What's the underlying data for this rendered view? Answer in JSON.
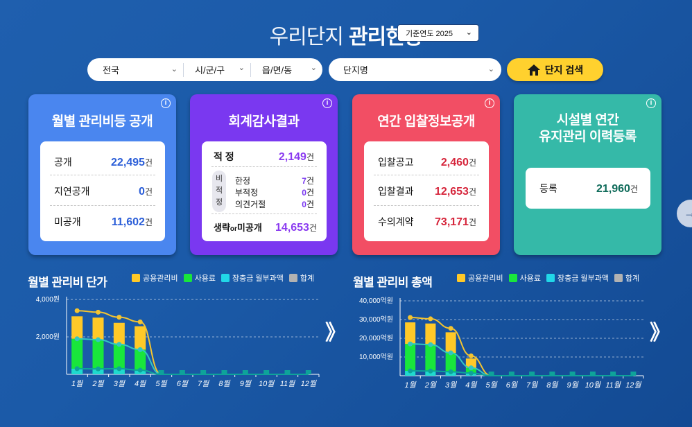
{
  "header": {
    "title_light": "우리단지",
    "title_bold": "관리현황",
    "year_select": "기준연도 2025"
  },
  "search": {
    "region": "전국",
    "city": "시/군/구",
    "town": "읍/면/동",
    "complex": "단지명",
    "button": "단지 검색"
  },
  "cards": {
    "fee": {
      "title": "월별 관리비등 공개",
      "rows": [
        {
          "label": "공개",
          "value": "22,495",
          "unit": "건"
        },
        {
          "label": "지연공개",
          "value": "0",
          "unit": "건"
        },
        {
          "label": "미공개",
          "value": "11,602",
          "unit": "건"
        }
      ]
    },
    "audit": {
      "title": "회계감사결과",
      "top": {
        "label": "적 정",
        "value": "2,149",
        "unit": "건"
      },
      "sub_label": [
        "비",
        "적",
        "정"
      ],
      "sub": [
        {
          "label": "한정",
          "value": "7",
          "unit": "건"
        },
        {
          "label": "부적정",
          "value": "0",
          "unit": "건"
        },
        {
          "label": "의견거절",
          "value": "0",
          "unit": "건"
        }
      ],
      "bottom": {
        "label_a": "생략",
        "label_or": "or",
        "label_b": "미공개",
        "value": "14,653",
        "unit": "건"
      }
    },
    "bid": {
      "title": "연간 입찰정보공개",
      "rows": [
        {
          "label": "입찰공고",
          "value": "2,460",
          "unit": "건"
        },
        {
          "label": "입찰결과",
          "value": "12,653",
          "unit": "건"
        },
        {
          "label": "수의계약",
          "value": "73,171",
          "unit": "건"
        }
      ]
    },
    "facility": {
      "title_line1": "시설별 연간",
      "title_line2": "유지관리 이력등록",
      "row": {
        "label": "등록",
        "value": "21,960",
        "unit": "건"
      }
    }
  },
  "colors": {
    "common": "#ffc928",
    "usage": "#19e63c",
    "reserve": "#21d7e8",
    "total": "#b2b2b2",
    "total_line": "#f4c430",
    "usage_line": "#34c6c2",
    "reserve_line": "#0ea39a"
  },
  "legend": [
    "공용관리비",
    "사용료",
    "장충금 월부과액",
    "합계"
  ],
  "chart_data": [
    {
      "type": "bar",
      "title": "월별 관리비 단가",
      "categories": [
        "1월",
        "2월",
        "3월",
        "4월",
        "5월",
        "6월",
        "7월",
        "8월",
        "9월",
        "10월",
        "11월",
        "12월"
      ],
      "y_ticks": [
        "4,000원",
        "2,000원"
      ],
      "ylim": [
        0,
        4000
      ],
      "series": [
        {
          "name": "공용관리비",
          "values": [
            1200,
            1180,
            1150,
            1250,
            0,
            0,
            0,
            0,
            0,
            0,
            0,
            0
          ]
        },
        {
          "name": "사용료",
          "values": [
            1900,
            1850,
            1600,
            1320,
            0,
            0,
            0,
            0,
            0,
            0,
            0,
            0
          ]
        },
        {
          "name": "장충금 월부과액",
          "values": [
            300,
            290,
            300,
            220,
            0,
            0,
            0,
            0,
            0,
            0,
            0,
            0
          ]
        },
        {
          "name": "합계",
          "values": [
            3400,
            3320,
            3050,
            2800,
            0,
            0,
            0,
            0,
            0,
            0,
            0,
            0
          ]
        }
      ]
    },
    {
      "type": "bar",
      "title": "월별 관리비 총액",
      "categories": [
        "1월",
        "2월",
        "3월",
        "4월",
        "5월",
        "6월",
        "7월",
        "8월",
        "9월",
        "10월",
        "11월",
        "12월"
      ],
      "y_ticks": [
        "40,000억원",
        "30,000억원",
        "20,000억원",
        "10,000억원"
      ],
      "ylim": [
        0,
        40000
      ],
      "series": [
        {
          "name": "공용관리비",
          "values": [
            11500,
            11300,
            11000,
            5000,
            0,
            0,
            0,
            0,
            0,
            0,
            0,
            0
          ]
        },
        {
          "name": "사용료",
          "values": [
            17000,
            16600,
            12200,
            4200,
            0,
            0,
            0,
            0,
            0,
            0,
            0,
            0
          ]
        },
        {
          "name": "장충금 월부과액",
          "values": [
            2600,
            2500,
            2100,
            1400,
            0,
            0,
            0,
            0,
            0,
            0,
            0,
            0
          ]
        },
        {
          "name": "합계",
          "values": [
            31100,
            30400,
            25300,
            10600,
            0,
            0,
            0,
            0,
            0,
            0,
            0,
            0
          ]
        }
      ]
    }
  ]
}
